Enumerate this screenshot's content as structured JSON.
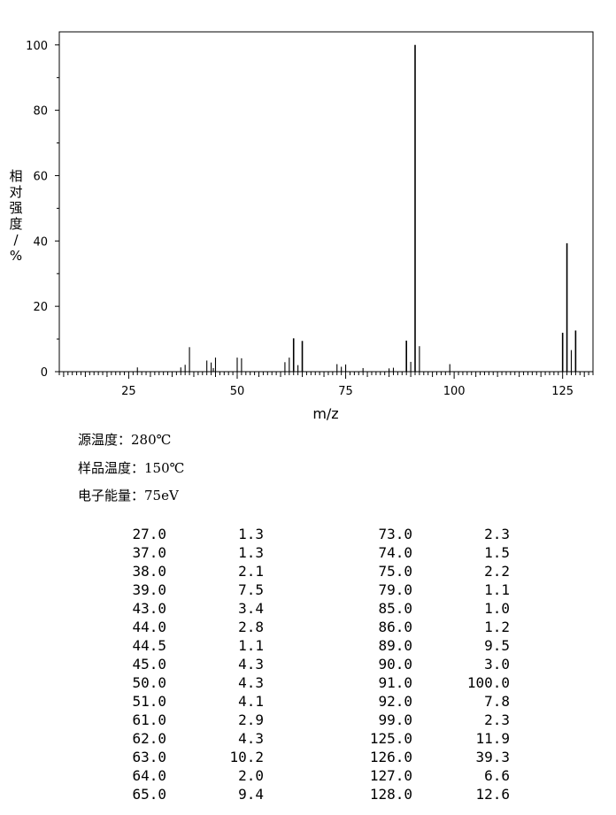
{
  "chart_data": {
    "type": "bar",
    "xlabel": "m/z",
    "ylabel": "相对强度/%",
    "xlim": [
      9,
      132
    ],
    "ylim": [
      0,
      104
    ],
    "xticks": [
      25,
      50,
      75,
      100,
      125
    ],
    "yticks": [
      0,
      20,
      40,
      60,
      80,
      100
    ],
    "peaks": [
      {
        "mz": 27.0,
        "intensity": 1.3
      },
      {
        "mz": 37.0,
        "intensity": 1.3
      },
      {
        "mz": 38.0,
        "intensity": 2.1
      },
      {
        "mz": 39.0,
        "intensity": 7.5
      },
      {
        "mz": 43.0,
        "intensity": 3.4
      },
      {
        "mz": 44.0,
        "intensity": 2.8
      },
      {
        "mz": 44.5,
        "intensity": 1.1
      },
      {
        "mz": 45.0,
        "intensity": 4.3
      },
      {
        "mz": 50.0,
        "intensity": 4.3
      },
      {
        "mz": 51.0,
        "intensity": 4.1
      },
      {
        "mz": 61.0,
        "intensity": 2.9
      },
      {
        "mz": 62.0,
        "intensity": 4.3
      },
      {
        "mz": 63.0,
        "intensity": 10.2
      },
      {
        "mz": 64.0,
        "intensity": 2.0
      },
      {
        "mz": 65.0,
        "intensity": 9.4
      },
      {
        "mz": 73.0,
        "intensity": 2.3
      },
      {
        "mz": 74.0,
        "intensity": 1.5
      },
      {
        "mz": 75.0,
        "intensity": 2.2
      },
      {
        "mz": 79.0,
        "intensity": 1.1
      },
      {
        "mz": 85.0,
        "intensity": 1.0
      },
      {
        "mz": 86.0,
        "intensity": 1.2
      },
      {
        "mz": 89.0,
        "intensity": 9.5
      },
      {
        "mz": 90.0,
        "intensity": 3.0
      },
      {
        "mz": 91.0,
        "intensity": 100.0
      },
      {
        "mz": 92.0,
        "intensity": 7.8
      },
      {
        "mz": 99.0,
        "intensity": 2.3
      },
      {
        "mz": 125.0,
        "intensity": 11.9
      },
      {
        "mz": 126.0,
        "intensity": 39.3
      },
      {
        "mz": 127.0,
        "intensity": 6.6
      },
      {
        "mz": 128.0,
        "intensity": 12.6
      }
    ]
  },
  "conditions": [
    "源温度：280℃",
    "样品温度：150℃",
    "电子能量：75eV"
  ],
  "table": {
    "left": [
      [
        "27.0",
        "1.3"
      ],
      [
        "37.0",
        "1.3"
      ],
      [
        "38.0",
        "2.1"
      ],
      [
        "39.0",
        "7.5"
      ],
      [
        "43.0",
        "3.4"
      ],
      [
        "44.0",
        "2.8"
      ],
      [
        "44.5",
        "1.1"
      ],
      [
        "45.0",
        "4.3"
      ],
      [
        "50.0",
        "4.3"
      ],
      [
        "51.0",
        "4.1"
      ],
      [
        "61.0",
        "2.9"
      ],
      [
        "62.0",
        "4.3"
      ],
      [
        "63.0",
        "10.2"
      ],
      [
        "64.0",
        "2.0"
      ],
      [
        "65.0",
        "9.4"
      ]
    ],
    "right": [
      [
        "73.0",
        "2.3"
      ],
      [
        "74.0",
        "1.5"
      ],
      [
        "75.0",
        "2.2"
      ],
      [
        "79.0",
        "1.1"
      ],
      [
        "85.0",
        "1.0"
      ],
      [
        "86.0",
        "1.2"
      ],
      [
        "89.0",
        "9.5"
      ],
      [
        "90.0",
        "3.0"
      ],
      [
        "91.0",
        "100.0"
      ],
      [
        "92.0",
        "7.8"
      ],
      [
        "99.0",
        "2.3"
      ],
      [
        "125.0",
        "11.9"
      ],
      [
        "126.0",
        "39.3"
      ],
      [
        "127.0",
        "6.6"
      ],
      [
        "128.0",
        "12.6"
      ]
    ]
  }
}
